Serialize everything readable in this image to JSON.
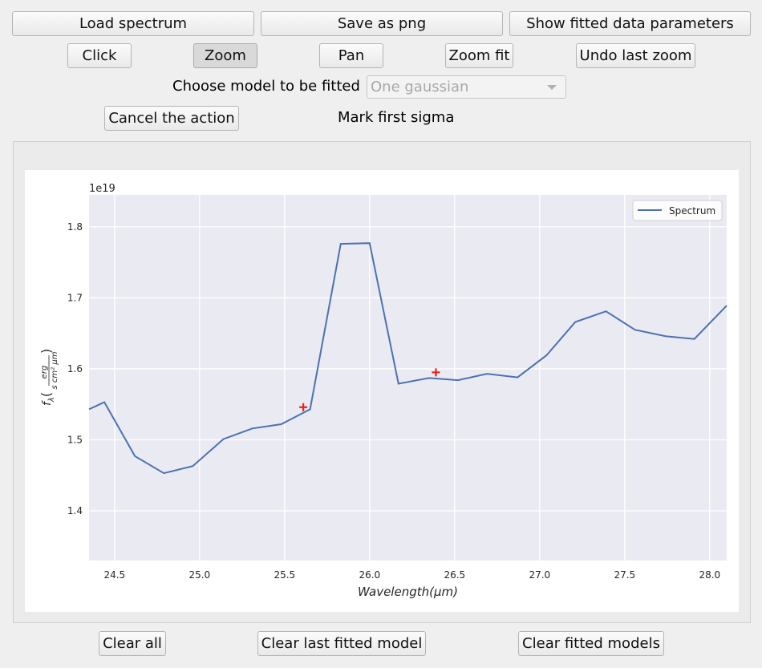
{
  "toolbar_row1": {
    "load": "Load spectrum",
    "save": "Save as png",
    "show_params": "Show fitted data parameters"
  },
  "toolbar_row2": {
    "click": "Click",
    "zoom": "Zoom",
    "pan": "Pan",
    "zoom_fit": "Zoom fit",
    "undo_zoom": "Undo last zoom"
  },
  "model": {
    "label": "Choose model to be fitted",
    "selected": "One gaussian"
  },
  "action": {
    "cancel": "Cancel the action",
    "status": "Mark first sigma"
  },
  "bottom": {
    "clear_all": "Clear all",
    "clear_last": "Clear last fitted model",
    "clear_models": "Clear fitted models"
  },
  "chart_data": {
    "type": "line",
    "xlabel": "Wavelength(μm)",
    "ylabel": "f_λ(erg / s cm² μm)",
    "offset_text": "1e19",
    "xlim": [
      24.35,
      28.1
    ],
    "ylim": [
      1.33,
      1.845
    ],
    "xticks": [
      24.5,
      25.0,
      25.5,
      26.0,
      26.5,
      27.0,
      27.5,
      28.0
    ],
    "xtick_labels": [
      "24.5",
      "25.0",
      "25.5",
      "26.0",
      "26.5",
      "27.0",
      "27.5",
      "28.0"
    ],
    "yticks": [
      1.4,
      1.5,
      1.6,
      1.7,
      1.8
    ],
    "ytick_labels": [
      "1.4",
      "1.5",
      "1.6",
      "1.7",
      "1.8"
    ],
    "grid": true,
    "legend_position": "top-right",
    "series": [
      {
        "name": "Spectrum",
        "color": "#4c72b0",
        "x": [
          24.35,
          24.44,
          24.62,
          24.79,
          24.96,
          25.14,
          25.31,
          25.48,
          25.65,
          25.83,
          26.0,
          26.17,
          26.35,
          26.52,
          26.69,
          26.87,
          27.04,
          27.21,
          27.39,
          27.56,
          27.74,
          27.91,
          28.1
        ],
        "y": [
          1.543,
          1.553,
          1.477,
          1.453,
          1.463,
          1.501,
          1.516,
          1.522,
          1.543,
          1.776,
          1.777,
          1.579,
          1.587,
          1.584,
          1.593,
          1.588,
          1.619,
          1.666,
          1.681,
          1.655,
          1.646,
          1.642,
          1.689
        ]
      }
    ],
    "markers": {
      "color": "#e8221f",
      "symbol": "+",
      "points": [
        {
          "x": 25.61,
          "y": 1.546
        },
        {
          "x": 26.39,
          "y": 1.595
        }
      ]
    }
  }
}
